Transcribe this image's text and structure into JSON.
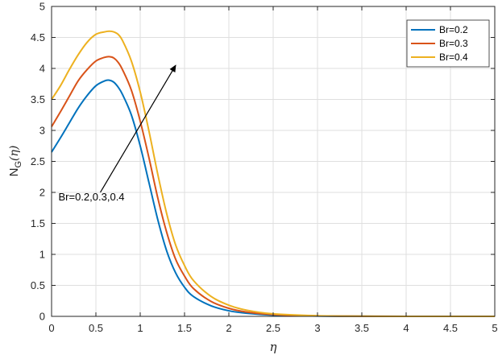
{
  "chart_data": {
    "type": "line",
    "xlabel": "η",
    "ylabel_main": "N",
    "ylabel_sub": "G",
    "ylabel_rest": "(η)",
    "xlim": [
      0,
      5
    ],
    "ylim": [
      0,
      5
    ],
    "grid": true,
    "legend_position": "top-right",
    "x_ticks": [
      "0",
      "0.5",
      "1",
      "1.5",
      "2",
      "2.5",
      "3",
      "3.5",
      "4",
      "4.5",
      "5"
    ],
    "y_ticks": [
      "0",
      "0.5",
      "1",
      "1.5",
      "2",
      "2.5",
      "3",
      "3.5",
      "4",
      "4.5",
      "5"
    ],
    "series": [
      {
        "name": "Br=0.2",
        "color": "#0072BD",
        "x": [
          0,
          0.1,
          0.2,
          0.3,
          0.4,
          0.5,
          0.6,
          0.65,
          0.7,
          0.75,
          0.8,
          0.9,
          1.0,
          1.1,
          1.2,
          1.3,
          1.4,
          1.5,
          1.6,
          1.8,
          2.0,
          2.2,
          2.5,
          3.0,
          3.5,
          4.0,
          5.0
        ],
        "y": [
          2.65,
          2.88,
          3.12,
          3.36,
          3.56,
          3.72,
          3.8,
          3.81,
          3.78,
          3.7,
          3.58,
          3.25,
          2.75,
          2.15,
          1.55,
          1.05,
          0.7,
          0.47,
          0.32,
          0.17,
          0.09,
          0.05,
          0.02,
          0.005,
          0.001,
          0.0,
          0.0
        ]
      },
      {
        "name": "Br=0.3",
        "color": "#D95319",
        "x": [
          0,
          0.1,
          0.2,
          0.3,
          0.4,
          0.5,
          0.6,
          0.65,
          0.7,
          0.75,
          0.8,
          0.9,
          1.0,
          1.1,
          1.2,
          1.3,
          1.4,
          1.5,
          1.6,
          1.8,
          2.0,
          2.2,
          2.5,
          3.0,
          3.5,
          4.0,
          5.0
        ],
        "y": [
          3.06,
          3.3,
          3.55,
          3.8,
          3.98,
          4.12,
          4.18,
          4.19,
          4.17,
          4.1,
          3.98,
          3.65,
          3.15,
          2.55,
          1.9,
          1.35,
          0.92,
          0.65,
          0.45,
          0.24,
          0.13,
          0.07,
          0.03,
          0.008,
          0.002,
          0.0,
          0.0
        ]
      },
      {
        "name": "Br=0.4",
        "color": "#EDB120",
        "x": [
          0,
          0.1,
          0.2,
          0.3,
          0.4,
          0.5,
          0.6,
          0.65,
          0.7,
          0.75,
          0.8,
          0.9,
          1.0,
          1.1,
          1.2,
          1.3,
          1.4,
          1.5,
          1.6,
          1.8,
          2.0,
          2.2,
          2.5,
          3.0,
          3.5,
          4.0,
          5.0
        ],
        "y": [
          3.5,
          3.72,
          3.98,
          4.22,
          4.42,
          4.55,
          4.59,
          4.6,
          4.59,
          4.55,
          4.45,
          4.12,
          3.62,
          2.98,
          2.28,
          1.65,
          1.15,
          0.82,
          0.58,
          0.32,
          0.18,
          0.1,
          0.04,
          0.01,
          0.003,
          0.0,
          0.0
        ]
      }
    ],
    "annotation": {
      "text": "Br=0.2,0.3,0.4",
      "arrow_from": [
        0.55,
        2.0
      ],
      "arrow_to": [
        1.4,
        4.05
      ]
    }
  }
}
